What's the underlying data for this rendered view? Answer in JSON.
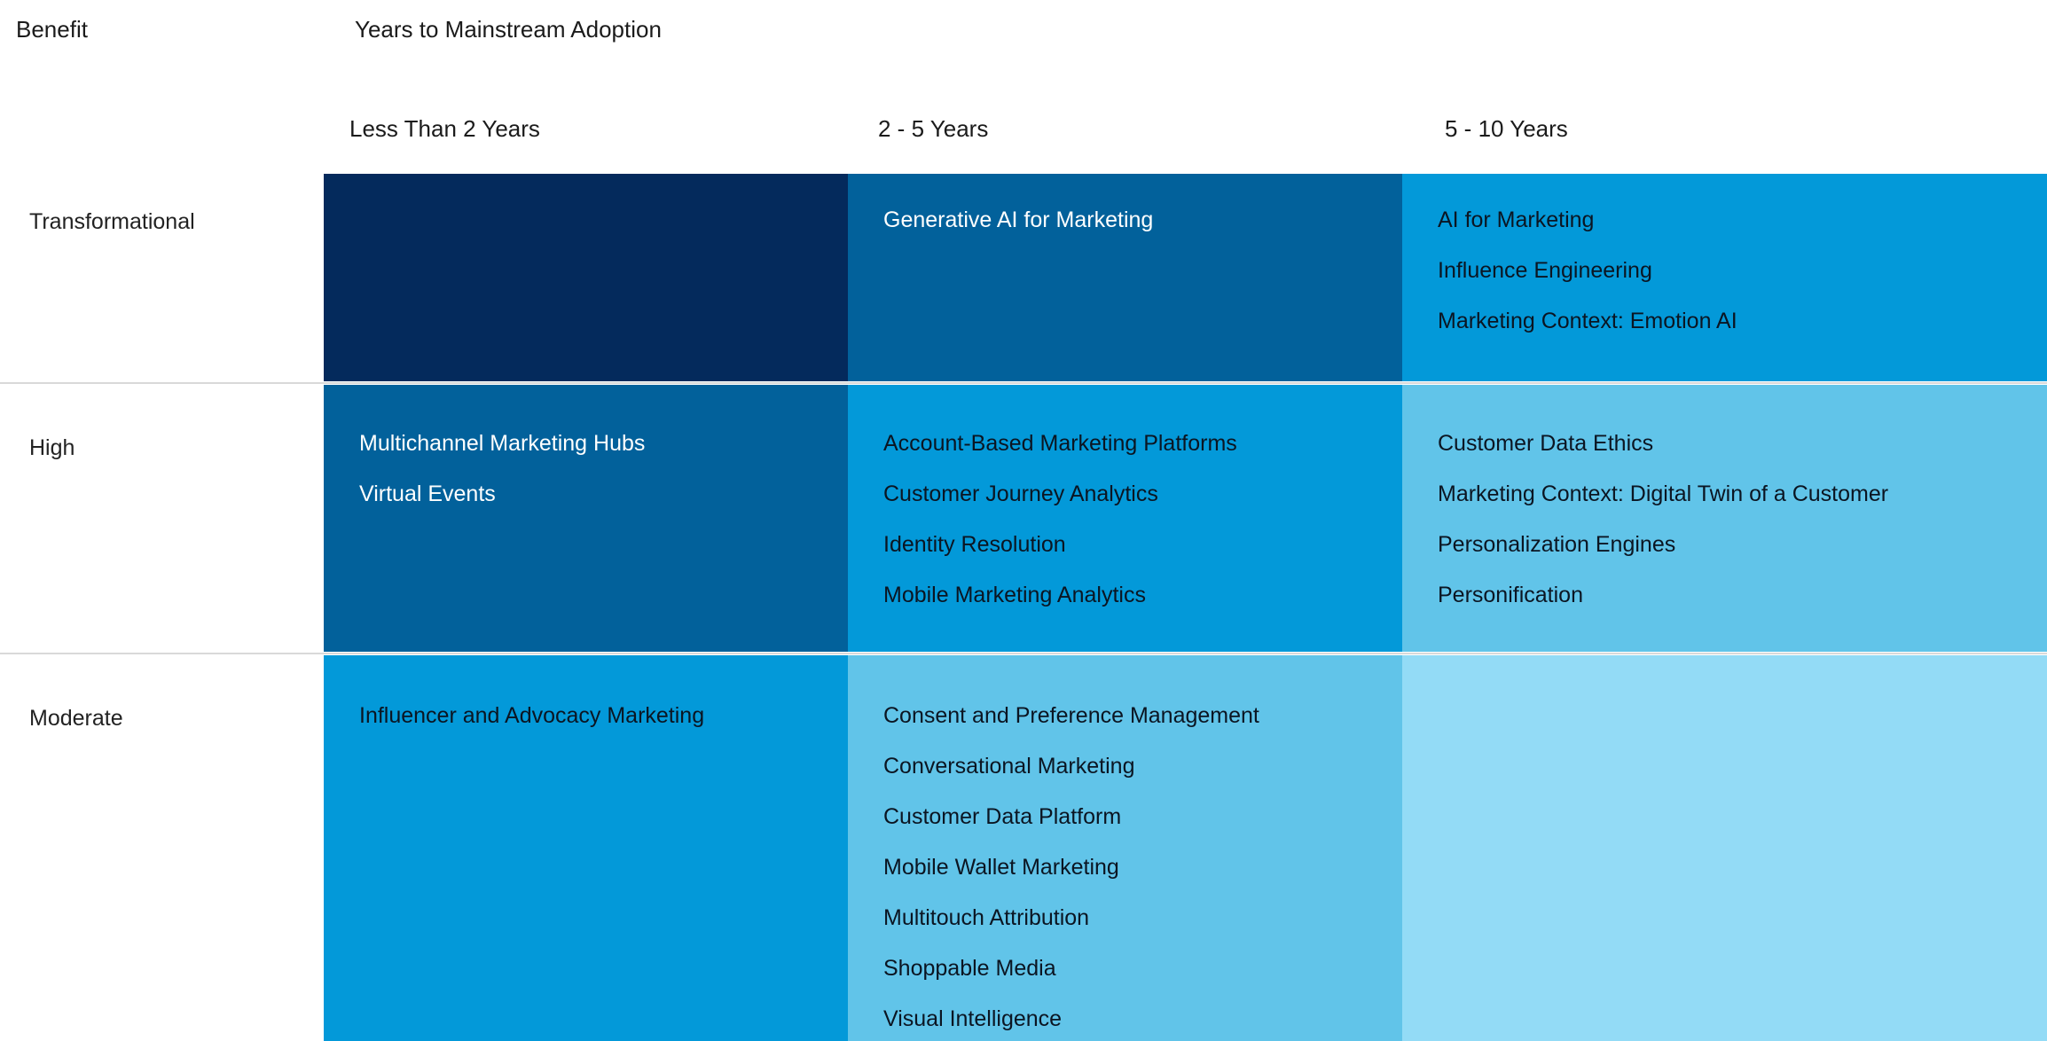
{
  "chart_data": {
    "type": "heatmap",
    "title": "Years to Mainstream Adoption",
    "row_axis_label": "Benefit",
    "columns": [
      "Less Than 2 Years",
      "2 - 5 Years",
      "5 - 10 Years"
    ],
    "rows": [
      "Transformational",
      "High",
      "Moderate"
    ],
    "cells": [
      {
        "row": "Transformational",
        "column": "Less Than 2 Years",
        "items": []
      },
      {
        "row": "Transformational",
        "column": "2 - 5 Years",
        "items": [
          "Generative AI for Marketing"
        ]
      },
      {
        "row": "Transformational",
        "column": "5 - 10 Years",
        "items": [
          "AI for Marketing",
          "Influence Engineering",
          "Marketing Context: Emotion AI"
        ]
      },
      {
        "row": "High",
        "column": "Less Than 2 Years",
        "items": [
          "Multichannel Marketing Hubs",
          "Virtual Events"
        ]
      },
      {
        "row": "High",
        "column": "2 - 5 Years",
        "items": [
          "Account-Based Marketing Platforms",
          "Customer Journey Analytics",
          "Identity Resolution",
          "Mobile Marketing Analytics"
        ]
      },
      {
        "row": "High",
        "column": "5 - 10 Years",
        "items": [
          "Customer Data Ethics",
          "Marketing Context: Digital Twin of a Customer",
          "Personalization Engines",
          "Personification"
        ]
      },
      {
        "row": "Moderate",
        "column": "Less Than 2 Years",
        "items": [
          "Influencer and Advocacy Marketing"
        ]
      },
      {
        "row": "Moderate",
        "column": "2 - 5 Years",
        "items": [
          "Consent and Preference Management",
          "Conversational Marketing",
          "Customer Data Platform",
          "Mobile Wallet Marketing",
          "Multitouch Attribution",
          "Shoppable Media",
          "Visual Intelligence"
        ]
      },
      {
        "row": "Moderate",
        "column": "5 - 10 Years",
        "items": []
      }
    ]
  },
  "colors": {
    "shade_darkest": "#042A5C",
    "shade_dark": "#02619B",
    "shade_mid": "#0399D9",
    "shade_light": "#61C4E9",
    "shade_lightest": "#93DBF6",
    "row_separator": "#D9D9D9",
    "text_on_dark": "#FFFFFF",
    "text_on_light": "#0B1522",
    "label_text": "#1B1B1B"
  }
}
